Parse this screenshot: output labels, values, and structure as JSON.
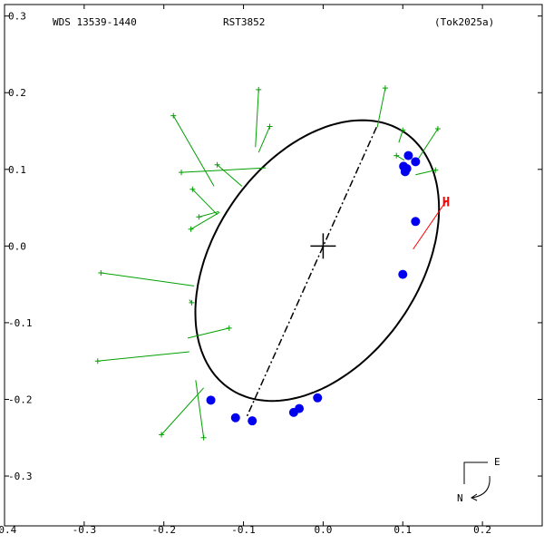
{
  "header": {
    "left": "WDS 13539-1440",
    "center": "RST3852",
    "right": "(Tok2025a)"
  },
  "compass": {
    "east_label": "E",
    "north_label": "N"
  },
  "colors": {
    "ellipse": "#000000",
    "residuals": "#00a000",
    "obs_points": "#0000ee",
    "highlight": "#ff0000",
    "axis": "#000000"
  },
  "chart_data": {
    "type": "scatter",
    "title": "RST3852",
    "xlabel": "",
    "ylabel": "",
    "xlim": [
      -0.4,
      0.275
    ],
    "ylim": [
      -0.365,
      0.315
    ],
    "grid": false,
    "x_ticks": [
      {
        "value": -0.4,
        "label": "-0.4"
      },
      {
        "value": -0.3,
        "label": "-0.3"
      },
      {
        "value": -0.2,
        "label": "-0.2"
      },
      {
        "value": -0.1,
        "label": "-0.1"
      },
      {
        "value": 0.0,
        "label": "0.0"
      },
      {
        "value": 0.1,
        "label": "0.1"
      },
      {
        "value": 0.2,
        "label": "0.2"
      }
    ],
    "y_ticks": [
      {
        "value": 0.3,
        "label": "0.3"
      },
      {
        "value": 0.2,
        "label": "0.2"
      },
      {
        "value": 0.1,
        "label": "0.1"
      },
      {
        "value": 0.0,
        "label": "0.0"
      },
      {
        "value": -0.1,
        "label": "-0.1"
      },
      {
        "value": -0.2,
        "label": "-0.2"
      },
      {
        "value": -0.3,
        "label": "-0.3"
      }
    ],
    "primary": {
      "x": 0.0,
      "y": 0.0
    },
    "orbit_ellipse": {
      "cx": -0.0075,
      "cy": -0.019,
      "a": 0.2,
      "b": 0.13,
      "angle_deg": 58
    },
    "line_of_apsides": {
      "x1": 0.067,
      "y1": 0.155,
      "x2": -0.096,
      "y2": -0.223
    },
    "observations_blue": [
      {
        "x": 0.107,
        "y": 0.118
      },
      {
        "x": 0.116,
        "y": 0.11
      },
      {
        "x": 0.101,
        "y": 0.104
      },
      {
        "x": 0.105,
        "y": 0.101
      },
      {
        "x": 0.103,
        "y": 0.097
      },
      {
        "x": 0.116,
        "y": 0.032
      },
      {
        "x": 0.1,
        "y": -0.037
      },
      {
        "x": -0.007,
        "y": -0.198
      },
      {
        "x": -0.03,
        "y": -0.212
      },
      {
        "x": -0.037,
        "y": -0.217
      },
      {
        "x": -0.141,
        "y": -0.201
      },
      {
        "x": -0.11,
        "y": -0.224
      },
      {
        "x": -0.089,
        "y": -0.228
      }
    ],
    "residuals_green": [
      {
        "obs": {
          "x": -0.188,
          "y": 0.17
        },
        "fit": {
          "x": -0.137,
          "y": 0.078
        }
      },
      {
        "obs": {
          "x": -0.081,
          "y": 0.204
        },
        "fit": {
          "x": -0.085,
          "y": 0.129
        }
      },
      {
        "obs": {
          "x": -0.067,
          "y": 0.156
        },
        "fit": {
          "x": -0.081,
          "y": 0.122
        }
      },
      {
        "obs": {
          "x": -0.178,
          "y": 0.096
        },
        "fit": {
          "x": -0.072,
          "y": 0.102
        }
      },
      {
        "obs": {
          "x": -0.133,
          "y": 0.106
        },
        "fit": {
          "x": -0.102,
          "y": 0.078
        }
      },
      {
        "obs": {
          "x": -0.164,
          "y": 0.074
        },
        "fit": {
          "x": -0.133,
          "y": 0.041
        }
      },
      {
        "obs": {
          "x": -0.156,
          "y": 0.038
        },
        "fit": {
          "x": -0.131,
          "y": 0.045
        }
      },
      {
        "obs": {
          "x": -0.166,
          "y": 0.022
        },
        "fit": {
          "x": -0.13,
          "y": 0.044
        }
      },
      {
        "obs": {
          "x": -0.279,
          "y": -0.035
        },
        "fit": {
          "x": -0.162,
          "y": -0.052
        }
      },
      {
        "obs": {
          "x": -0.165,
          "y": -0.074
        },
        "fit": {
          "x": -0.168,
          "y": -0.07
        }
      },
      {
        "obs": {
          "x": -0.118,
          "y": -0.107
        },
        "fit": {
          "x": -0.17,
          "y": -0.12
        }
      },
      {
        "obs": {
          "x": -0.283,
          "y": -0.15
        },
        "fit": {
          "x": -0.168,
          "y": -0.138
        }
      },
      {
        "obs": {
          "x": -0.203,
          "y": -0.246
        },
        "fit": {
          "x": -0.15,
          "y": -0.185
        }
      },
      {
        "obs": {
          "x": -0.15,
          "y": -0.25
        },
        "fit": {
          "x": -0.16,
          "y": -0.175
        }
      },
      {
        "obs": {
          "x": 0.078,
          "y": 0.206
        },
        "fit": {
          "x": 0.068,
          "y": 0.155
        }
      },
      {
        "obs": {
          "x": 0.1,
          "y": 0.151
        },
        "fit": {
          "x": 0.095,
          "y": 0.135
        }
      },
      {
        "obs": {
          "x": 0.092,
          "y": 0.118
        },
        "fit": {
          "x": 0.102,
          "y": 0.112
        }
      },
      {
        "obs": {
          "x": 0.144,
          "y": 0.153
        },
        "fit": {
          "x": 0.117,
          "y": 0.11
        }
      },
      {
        "obs": {
          "x": 0.141,
          "y": 0.099
        },
        "fit": {
          "x": 0.116,
          "y": 0.093
        }
      }
    ],
    "highlight_red": {
      "label": "H",
      "obs": {
        "x": 0.154,
        "y": 0.058
      },
      "fit": {
        "x": 0.113,
        "y": -0.004
      }
    }
  }
}
